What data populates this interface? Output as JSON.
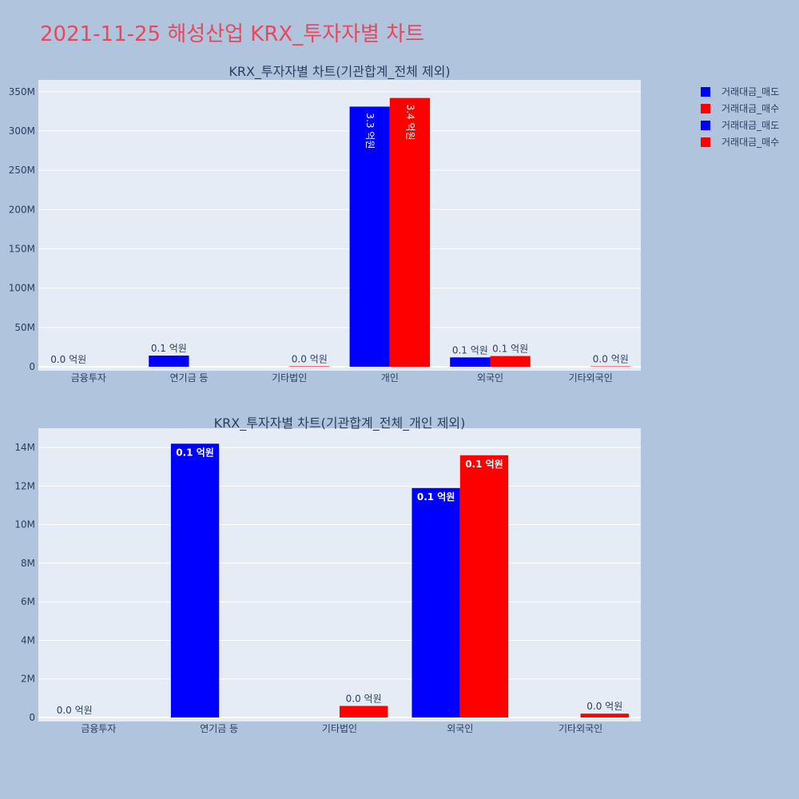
{
  "title": "2021-11-25 해성산업 KRX_투자자별 차트",
  "colors": {
    "sell": "#0000ff",
    "buy": "#ff0000",
    "plot_bg": "#e5ecf6",
    "page_bg": "#b0c4de",
    "title": "#e8485c"
  },
  "legend": [
    {
      "label": "거래대금_매도",
      "color": "#0000ff"
    },
    {
      "label": "거래대금_매수",
      "color": "#ff0000"
    },
    {
      "label": "거래대금_매도",
      "color": "#0000ff"
    },
    {
      "label": "거래대금_매수",
      "color": "#ff0000"
    }
  ],
  "chart_data": [
    {
      "type": "bar",
      "title": "KRX_투자자별 차트(기관합계_전체 제외)",
      "categories": [
        "금융투자",
        "연기금 등",
        "기타법인",
        "개인",
        "외국인",
        "기타외국인"
      ],
      "ylim": [
        0,
        365000000
      ],
      "yticks": [
        0,
        50000000,
        100000000,
        150000000,
        200000000,
        250000000,
        300000000,
        350000000
      ],
      "ytick_labels": [
        "0",
        "50M",
        "100M",
        "150M",
        "200M",
        "250M",
        "300M",
        "350M"
      ],
      "label_orientation": "vertical-inside-for-tall-bars",
      "series": [
        {
          "name": "거래대금_매도",
          "color": "#0000ff",
          "values": [
            0,
            14200000,
            0,
            331000000,
            11900000,
            0
          ],
          "labels": [
            "0.0 억원",
            "0.1 억원",
            "",
            "3.3 억원",
            "0.1 억원",
            ""
          ]
        },
        {
          "name": "거래대금_매수",
          "color": "#ff0000",
          "values": [
            0,
            0,
            600000,
            342000000,
            13600000,
            200000
          ],
          "labels": [
            "",
            "",
            "0.0 억원",
            "3.4 억원",
            "0.1 억원",
            "0.0 억원"
          ]
        }
      ],
      "grid": true
    },
    {
      "type": "bar",
      "title": "KRX_투자자별 차트(기관합계_전체_개인 제외)",
      "categories": [
        "금융투자",
        "연기금 등",
        "기타법인",
        "외국인",
        "기타외국인"
      ],
      "ylim": [
        0,
        15000000
      ],
      "yticks": [
        0,
        2000000,
        4000000,
        6000000,
        8000000,
        10000000,
        12000000,
        14000000
      ],
      "ytick_labels": [
        "0",
        "2M",
        "4M",
        "6M",
        "8M",
        "10M",
        "12M",
        "14M"
      ],
      "series": [
        {
          "name": "거래대금_매도",
          "color": "#0000ff",
          "values": [
            0,
            14200000,
            0,
            11900000,
            0
          ],
          "labels": [
            "0.0 억원",
            "0.1 억원",
            "",
            "0.1 억원",
            ""
          ]
        },
        {
          "name": "거래대금_매수",
          "color": "#ff0000",
          "values": [
            0,
            0,
            600000,
            13600000,
            200000
          ],
          "labels": [
            "",
            "",
            "0.0 억원",
            "0.1 억원",
            "0.0 억원"
          ]
        }
      ],
      "grid": true
    }
  ]
}
